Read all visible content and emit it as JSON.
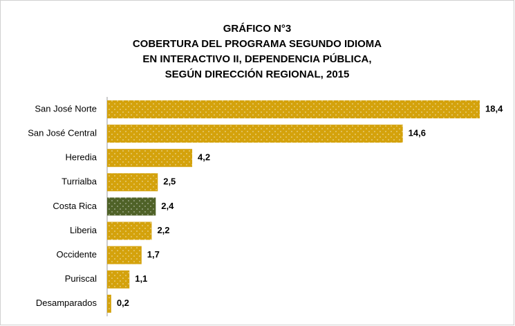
{
  "chart_data": {
    "type": "hbar",
    "title": [
      "GRÁFICO N°3",
      "COBERTURA DEL PROGRAMA SEGUNDO IDIOMA",
      "EN INTERACTIVO II,  DEPENDENCIA PÚBLICA,",
      "SEGÚN DIRECCIÓN REGIONAL,  2015"
    ],
    "categories": [
      "San José Norte",
      "San José Central",
      "Heredia",
      "Turrialba",
      "Costa Rica",
      "Liberia",
      "Occidente",
      "Puriscal",
      "Desamparados"
    ],
    "values": [
      18.4,
      14.6,
      4.2,
      2.5,
      2.4,
      2.2,
      1.7,
      1.1,
      0.2
    ],
    "value_labels": [
      "18,4",
      "14,6",
      "4,2",
      "2,5",
      "2,4",
      "2,2",
      "1,7",
      "1,1",
      "0,2"
    ],
    "colors": [
      "#d4a20c",
      "#d4a20c",
      "#d4a20c",
      "#d4a20c",
      "#4f6228",
      "#d4a20c",
      "#d4a20c",
      "#d4a20c",
      "#d4a20c"
    ]
  }
}
